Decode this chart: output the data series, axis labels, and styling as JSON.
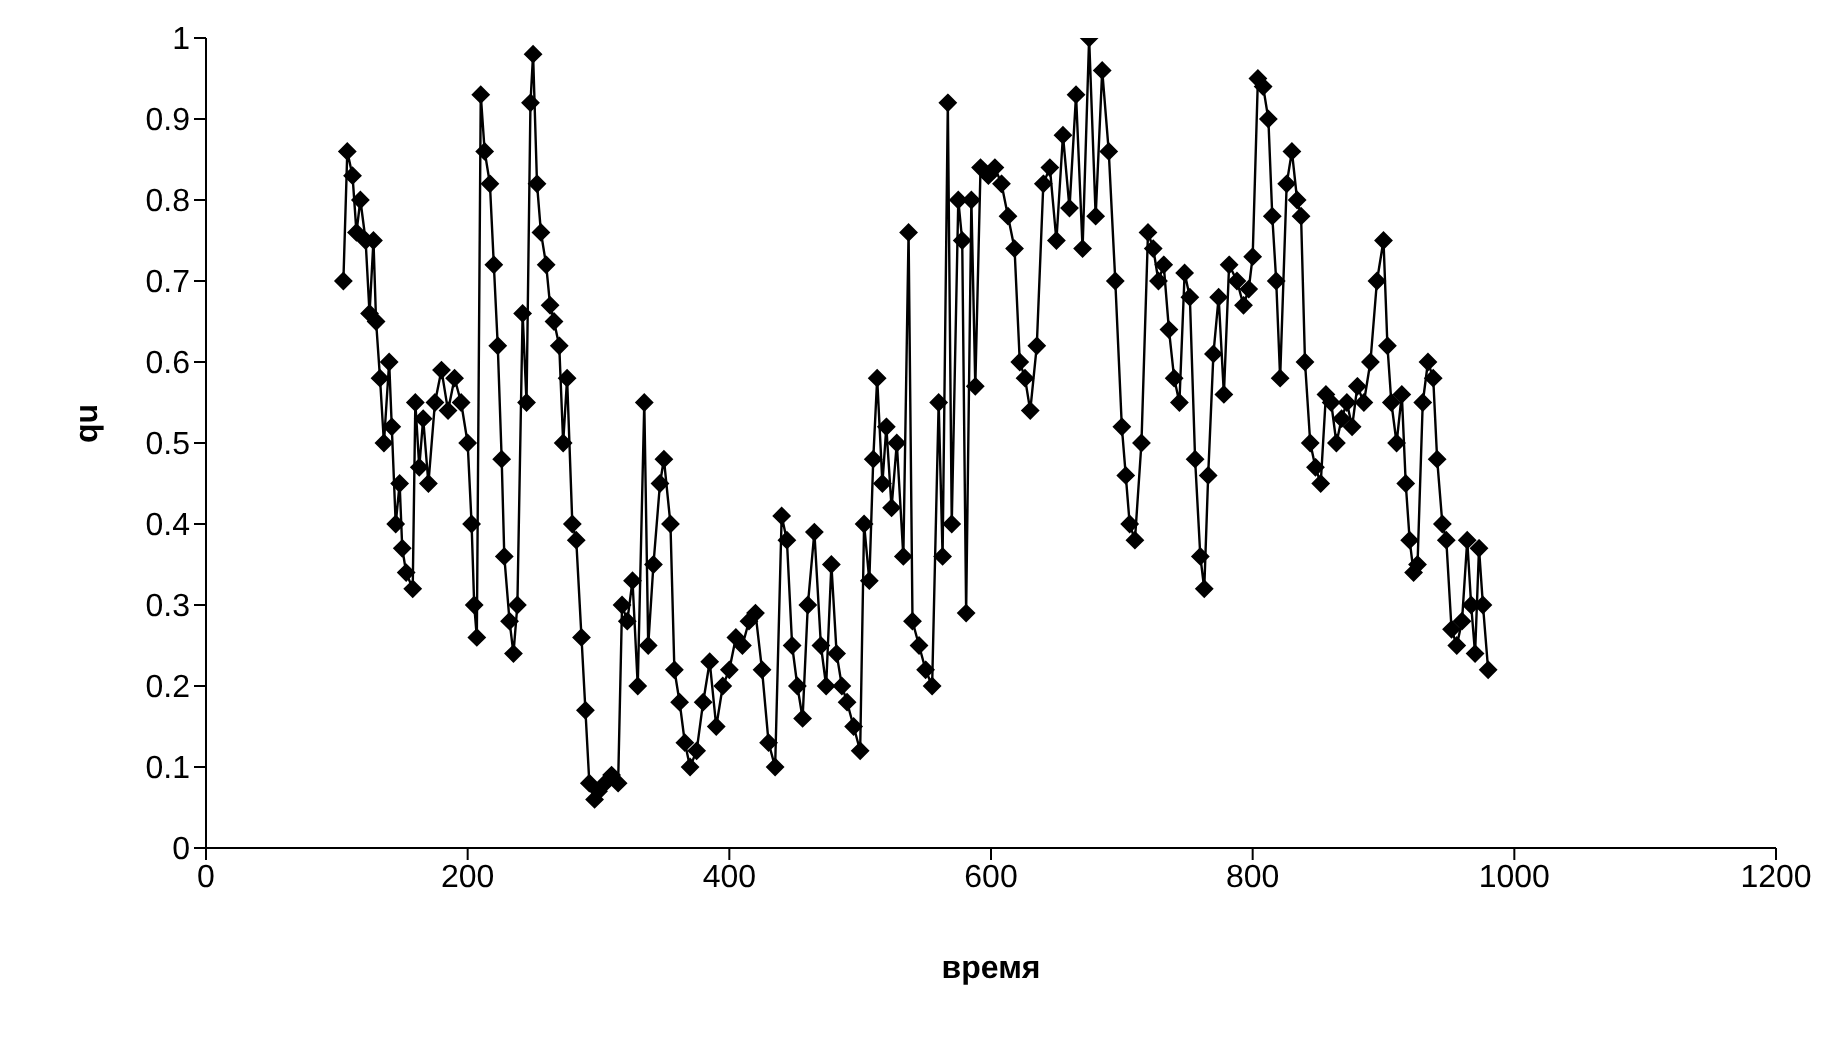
{
  "chart_data": {
    "type": "line",
    "xlabel": "время",
    "ylabel": "qu",
    "marker": "diamond",
    "line_style": "solid",
    "xlim": [
      0,
      1200
    ],
    "xticks": [
      0,
      200,
      400,
      600,
      800,
      1000,
      1200
    ],
    "ylim": [
      0,
      1
    ],
    "yticks": [
      0,
      0.1,
      0.2,
      0.3,
      0.4,
      0.5,
      0.6,
      0.7,
      0.8,
      0.9,
      1
    ],
    "series": [
      {
        "color": "#000000",
        "x": [
          105,
          108,
          112,
          115,
          118,
          122,
          125,
          128,
          130,
          133,
          136,
          140,
          142,
          145,
          148,
          150,
          153,
          158,
          160,
          163,
          166,
          170,
          175,
          180,
          185,
          190,
          195,
          200,
          203,
          205,
          207,
          210,
          213,
          217,
          220,
          223,
          226,
          228,
          232,
          235,
          238,
          242,
          245,
          248,
          250,
          253,
          256,
          260,
          263,
          266,
          270,
          273,
          276,
          280,
          283,
          287,
          290,
          293,
          297,
          300,
          305,
          310,
          315,
          318,
          322,
          326,
          330,
          335,
          338,
          342,
          347,
          350,
          355,
          358,
          362,
          366,
          370,
          375,
          380,
          385,
          390,
          395,
          400,
          405,
          410,
          415,
          420,
          425,
          430,
          435,
          440,
          444,
          448,
          452,
          456,
          460,
          465,
          470,
          474,
          478,
          482,
          486,
          490,
          495,
          500,
          503,
          507,
          510,
          513,
          517,
          520,
          524,
          528,
          533,
          537,
          540,
          545,
          550,
          555,
          560,
          563,
          567,
          570,
          575,
          578,
          581,
          585,
          588,
          592,
          598,
          603,
          608,
          613,
          618,
          622,
          626,
          630,
          635,
          640,
          645,
          650,
          655,
          660,
          665,
          670,
          675,
          680,
          685,
          690,
          695,
          700,
          703,
          706,
          710,
          715,
          720,
          724,
          728,
          732,
          736,
          740,
          744,
          748,
          752,
          756,
          760,
          763,
          766,
          770,
          774,
          778,
          782,
          788,
          793,
          797,
          800,
          804,
          808,
          812,
          815,
          818,
          821,
          826,
          830,
          834,
          837,
          840,
          844,
          848,
          852,
          856,
          860,
          864,
          868,
          872,
          876,
          880,
          885,
          890,
          895,
          900,
          903,
          906,
          910,
          914,
          917,
          920,
          923,
          926,
          930,
          934,
          938,
          941,
          945,
          948,
          952,
          956,
          960,
          964,
          967,
          970,
          973,
          976,
          980
        ],
        "values": [
          0.7,
          0.86,
          0.83,
          0.76,
          0.8,
          0.75,
          0.66,
          0.75,
          0.65,
          0.58,
          0.5,
          0.6,
          0.52,
          0.4,
          0.45,
          0.37,
          0.34,
          0.32,
          0.55,
          0.47,
          0.53,
          0.45,
          0.55,
          0.59,
          0.54,
          0.58,
          0.55,
          0.5,
          0.4,
          0.3,
          0.26,
          0.93,
          0.86,
          0.82,
          0.72,
          0.62,
          0.48,
          0.36,
          0.28,
          0.24,
          0.3,
          0.66,
          0.55,
          0.92,
          0.98,
          0.82,
          0.76,
          0.72,
          0.67,
          0.65,
          0.62,
          0.5,
          0.58,
          0.4,
          0.38,
          0.26,
          0.17,
          0.08,
          0.06,
          0.07,
          0.08,
          0.09,
          0.08,
          0.3,
          0.28,
          0.33,
          0.2,
          0.55,
          0.25,
          0.35,
          0.45,
          0.48,
          0.4,
          0.22,
          0.18,
          0.13,
          0.1,
          0.12,
          0.18,
          0.23,
          0.15,
          0.2,
          0.22,
          0.26,
          0.25,
          0.28,
          0.29,
          0.22,
          0.13,
          0.1,
          0.41,
          0.38,
          0.25,
          0.2,
          0.16,
          0.3,
          0.39,
          0.25,
          0.2,
          0.35,
          0.24,
          0.2,
          0.18,
          0.15,
          0.12,
          0.4,
          0.33,
          0.48,
          0.58,
          0.45,
          0.52,
          0.42,
          0.5,
          0.36,
          0.76,
          0.28,
          0.25,
          0.22,
          0.2,
          0.55,
          0.36,
          0.92,
          0.4,
          0.8,
          0.75,
          0.29,
          0.8,
          0.57,
          0.84,
          0.83,
          0.84,
          0.82,
          0.78,
          0.74,
          0.6,
          0.58,
          0.54,
          0.62,
          0.82,
          0.84,
          0.75,
          0.88,
          0.79,
          0.93,
          0.74,
          1.0,
          0.78,
          0.96,
          0.86,
          0.7,
          0.52,
          0.46,
          0.4,
          0.38,
          0.5,
          0.76,
          0.74,
          0.7,
          0.72,
          0.64,
          0.58,
          0.55,
          0.71,
          0.68,
          0.48,
          0.36,
          0.32,
          0.46,
          0.61,
          0.68,
          0.56,
          0.72,
          0.7,
          0.67,
          0.69,
          0.73,
          0.95,
          0.94,
          0.9,
          0.78,
          0.7,
          0.58,
          0.82,
          0.86,
          0.8,
          0.78,
          0.6,
          0.5,
          0.47,
          0.45,
          0.56,
          0.55,
          0.5,
          0.53,
          0.55,
          0.52,
          0.57,
          0.55,
          0.6,
          0.7,
          0.75,
          0.62,
          0.55,
          0.5,
          0.56,
          0.45,
          0.38,
          0.34,
          0.35,
          0.55,
          0.6,
          0.58,
          0.48,
          0.4,
          0.38,
          0.27,
          0.25,
          0.28,
          0.38,
          0.3,
          0.24,
          0.37,
          0.3,
          0.22
        ]
      }
    ]
  }
}
